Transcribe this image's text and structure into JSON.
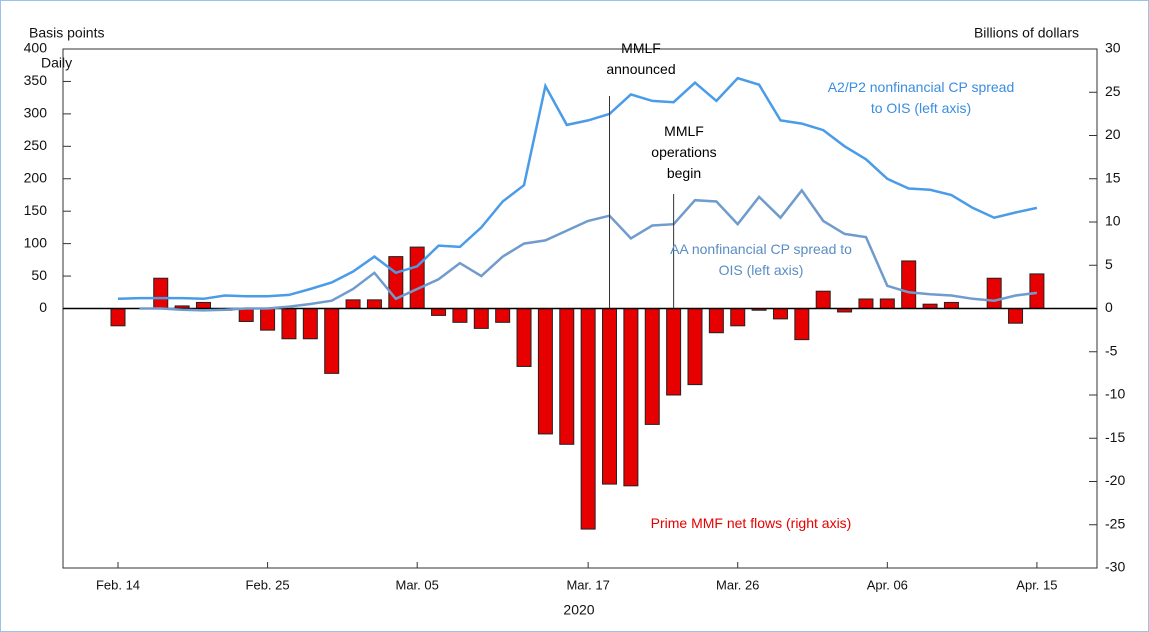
{
  "chart_data": {
    "type": "bar",
    "y_label": "Basis points",
    "subtitle": "Daily",
    "y2_label": "Billions of dollars",
    "x_label": "2020",
    "categories": [
      "Feb. 14",
      null,
      null,
      null,
      null,
      null,
      null,
      "Feb. 25",
      null,
      null,
      null,
      null,
      null,
      null,
      "Mar. 05",
      null,
      null,
      null,
      null,
      null,
      null,
      null,
      "Mar. 17",
      null,
      null,
      null,
      null,
      null,
      null,
      "Mar. 26",
      null,
      null,
      null,
      null,
      null,
      null,
      "Apr. 06",
      null,
      null,
      null,
      null,
      null,
      null,
      "Apr. 15"
    ],
    "ylim": [
      -400,
      400
    ],
    "yticks": [
      0,
      50,
      100,
      150,
      200,
      250,
      300,
      350,
      400
    ],
    "y2lim": [
      -30,
      30
    ],
    "y2ticks": [
      -30,
      -25,
      -20,
      -15,
      -10,
      -5,
      0,
      5,
      10,
      15,
      20,
      25,
      30
    ],
    "annotations": [
      {
        "text": "MMLF announced",
        "index": 23
      },
      {
        "text": "MMLF operations begin",
        "index": 26
      }
    ],
    "series": [
      {
        "name": "Prime MMF net flows (right axis)",
        "type": "bar",
        "axis": "y2",
        "color": "#e60000",
        "values": [
          -2,
          null,
          3.5,
          0.3,
          0.7,
          -0.2,
          -1.5,
          -2.5,
          -3.5,
          -3.5,
          -7.5,
          1,
          1,
          6,
          7.1,
          -0.8,
          -1.6,
          -2.3,
          -1.6,
          -6.7,
          -14.5,
          -15.7,
          -25.5,
          -20.3,
          -20.5,
          -13.4,
          -10,
          -8.8,
          -2.8,
          -2,
          -0.2,
          -1.2,
          -3.6,
          2,
          -0.4,
          1.1,
          1.1,
          5.5,
          0.5,
          0.7,
          null,
          3.5,
          -1.7,
          4
        ]
      },
      {
        "name": "A2/P2 nonfinancial CP spread to OIS (left axis)",
        "type": "line",
        "axis": "y",
        "color": "#4a9be8",
        "values": [
          15,
          16,
          16,
          16,
          15,
          20,
          19,
          19,
          21,
          30,
          40,
          57,
          80,
          55,
          65,
          97,
          95,
          125,
          165,
          190,
          343,
          283,
          290,
          300,
          330,
          320,
          318,
          348,
          320,
          355,
          345,
          290,
          285,
          275,
          250,
          230,
          200,
          185,
          183,
          175,
          155,
          140,
          148,
          155
        ]
      },
      {
        "name": "AA nonfinancial CP spread to OIS (left axis)",
        "type": "line",
        "axis": "y",
        "color": "#6f9ccc",
        "values": [
          null,
          0,
          0,
          -2,
          -3,
          -2,
          0,
          0,
          3,
          7,
          12,
          30,
          55,
          15,
          30,
          45,
          70,
          50,
          80,
          100,
          105,
          120,
          135,
          143,
          108,
          128,
          130,
          167,
          165,
          130,
          172,
          140,
          182,
          135,
          115,
          110,
          35,
          25,
          22,
          20,
          15,
          12,
          20,
          24
        ]
      }
    ]
  }
}
